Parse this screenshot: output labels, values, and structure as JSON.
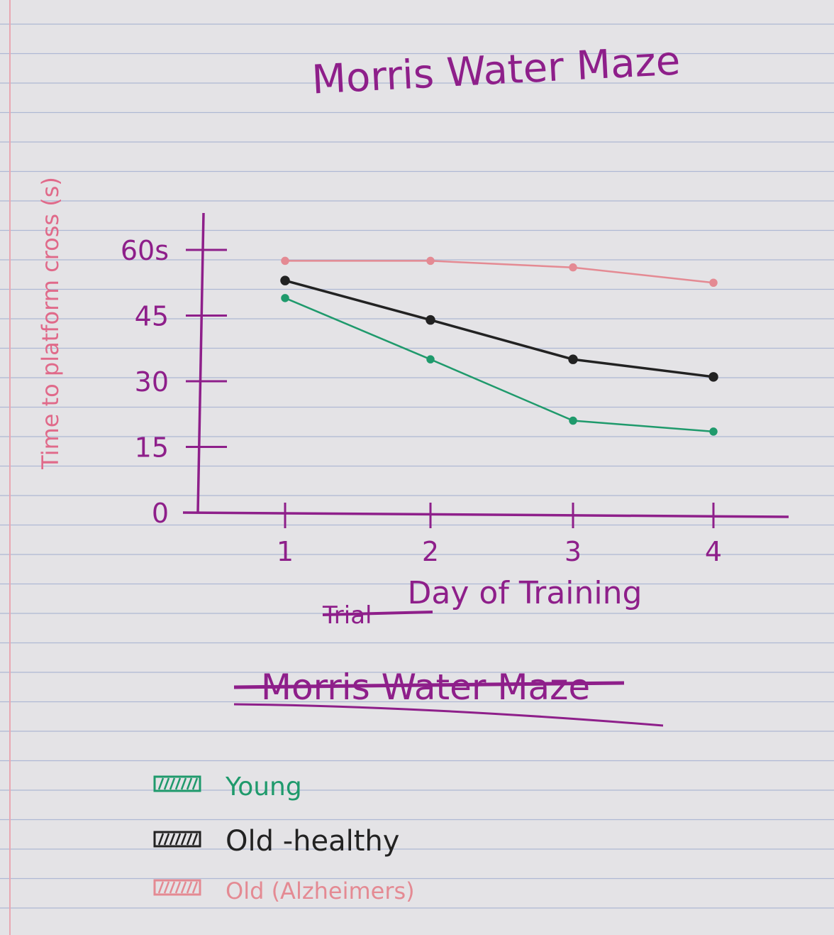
{
  "chart_data": {
    "type": "line",
    "title": "Morris Water Maze",
    "xlabel": "Day of Training",
    "ylabel": "Time to platform cross (s)",
    "x": [
      1,
      2,
      3,
      4
    ],
    "xticks": [
      "1",
      "2",
      "3",
      "4"
    ],
    "yticks": [
      "0",
      "15",
      "30",
      "45",
      "60s"
    ],
    "ylim": [
      0,
      60
    ],
    "grid": false,
    "legend_position": "bottom-left",
    "crossed_out_text": [
      "Trial",
      "Morris Water Maze"
    ],
    "series": [
      {
        "name": "Young",
        "color": "#1f9a6c",
        "values": [
          49,
          35,
          21,
          18.5
        ]
      },
      {
        "name": "Old -healthy",
        "color": "#222222",
        "values": [
          53,
          44,
          35,
          31
        ]
      },
      {
        "name": "Old (Alzheimers)",
        "color": "#e48a93",
        "values": [
          57.5,
          57.5,
          56,
          52.5
        ]
      }
    ]
  },
  "colors": {
    "paper": "#e4e3e6",
    "rule_lines": "#aeb8d4",
    "margin_line": "#e8a8b2",
    "ink_purple": "#8e1f8a"
  }
}
